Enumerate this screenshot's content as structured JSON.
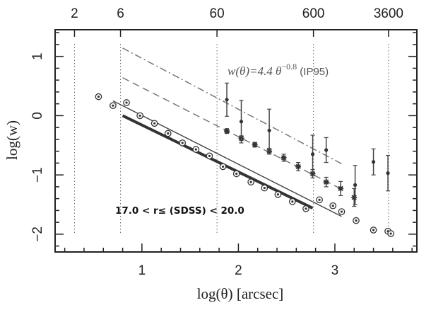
{
  "chart_data": {
    "type": "scatter",
    "xlim": [
      0.1,
      3.85
    ],
    "ylim": [
      -2.3,
      1.45
    ],
    "xlabel": "log(θ) [arcsec]",
    "ylabel": "log(w)",
    "x_ticks": [
      "1",
      "2",
      "3"
    ],
    "y_ticks": [
      "1",
      "0",
      "−1",
      "−2"
    ],
    "top_ticks": [
      "2",
      "6",
      "60",
      "600",
      "3600"
    ],
    "top_tick_x": [
      0.301,
      0.778,
      1.778,
      2.778,
      3.556
    ],
    "vertical_dotted_lines_x": [
      0.301,
      0.778,
      1.778,
      2.778,
      3.556
    ],
    "annotations": {
      "formula_main": "w(θ)=4.4 θ",
      "formula_exp": "−0.8",
      "formula_ref": " (IP95)",
      "magnitude_range": "17.0 < r≤ (SDSS) < 20.0"
    },
    "series": [
      {
        "style": "circled-dot",
        "x": [
          0.55,
          0.7,
          0.84,
          0.98,
          1.13,
          1.27,
          1.42,
          1.56,
          1.7,
          1.84,
          1.98,
          2.13,
          2.27,
          2.41,
          2.56,
          2.7,
          2.84,
          2.98,
          3.07,
          3.22,
          3.4,
          3.55,
          3.58
        ],
        "y": [
          0.32,
          0.17,
          0.22,
          0.0,
          -0.13,
          -0.3,
          -0.46,
          -0.57,
          -0.68,
          -0.86,
          -0.98,
          -1.12,
          -1.22,
          -1.33,
          -1.45,
          -1.57,
          -1.42,
          -1.52,
          -1.62,
          -1.77,
          -1.93,
          -1.95,
          -1.99
        ],
        "errors": [
          0,
          0,
          0,
          0,
          0,
          0,
          0,
          0,
          0,
          0,
          0,
          0,
          0,
          0,
          0,
          0,
          0,
          0,
          0,
          0,
          0,
          0,
          0
        ]
      },
      {
        "style": "star",
        "x": [
          1.88,
          2.03,
          2.17,
          2.32,
          2.47,
          2.62,
          2.77,
          2.91,
          3.06,
          3.2
        ],
        "y": [
          -0.26,
          -0.38,
          -0.49,
          -0.6,
          -0.71,
          -0.86,
          -0.98,
          -1.12,
          -1.23,
          -1.38
        ],
        "errors": [
          0.04,
          0.04,
          0.04,
          0.05,
          0.06,
          0.07,
          0.07,
          0.08,
          0.12,
          0.15
        ]
      },
      {
        "style": "dot-errorbar",
        "x": [
          1.88,
          2.03,
          2.32,
          2.77,
          2.91,
          3.21,
          3.4,
          3.55
        ],
        "y": [
          0.27,
          -0.1,
          -0.25,
          -0.65,
          -0.58,
          -1.17,
          -0.78,
          -0.97
        ],
        "errors": [
          0.28,
          0.36,
          0.36,
          0.32,
          0.21,
          0.33,
          0.22,
          0.3
        ]
      }
    ],
    "lines": [
      {
        "style": "dash-dot",
        "x": [
          0.8,
          3.08
        ],
        "y": [
          1.14,
          -0.82
        ]
      },
      {
        "style": "dashed",
        "x": [
          0.8,
          3.08
        ],
        "y": [
          0.64,
          -1.25
        ]
      },
      {
        "style": "solid-thin",
        "x": [
          0.7,
          3.07
        ],
        "y": [
          0.25,
          -1.7
        ]
      },
      {
        "style": "solid-thick",
        "x": [
          0.8,
          2.77
        ],
        "y": [
          0.0,
          -1.56
        ]
      }
    ]
  }
}
